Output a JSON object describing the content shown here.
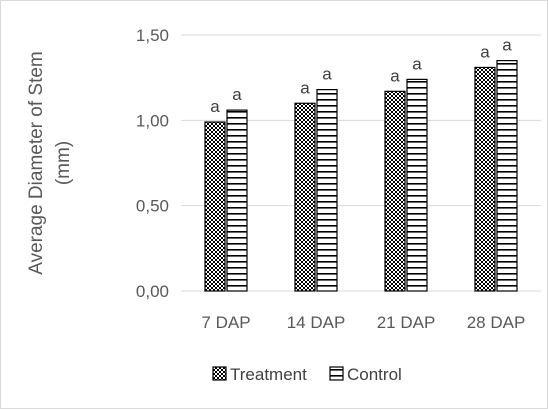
{
  "chart_data": {
    "type": "bar",
    "categories": [
      "7 DAP",
      "14 DAP",
      "21 DAP",
      "28 DAP"
    ],
    "series": [
      {
        "name": "Treatment",
        "values": [
          0.99,
          1.1,
          1.17,
          1.31
        ],
        "labels": [
          "a",
          "a",
          "a",
          "a"
        ],
        "pattern": "checker"
      },
      {
        "name": "Control",
        "values": [
          1.06,
          1.18,
          1.24,
          1.35
        ],
        "labels": [
          "a",
          "a",
          "a",
          "a"
        ],
        "pattern": "horizontal-lines"
      }
    ],
    "title": "",
    "xlabel": "",
    "ylabel": "Average Diameter of Stem",
    "ylabel_unit": "(mm)",
    "ylim": [
      0,
      1.5
    ],
    "yticks": [
      "0,00",
      "0,50",
      "1,00",
      "1,50"
    ],
    "ytick_values": [
      0,
      0.5,
      1.0,
      1.5
    ],
    "grid": true,
    "legend_position": "bottom",
    "colors": {
      "gridline": "#d9d9d9",
      "bar_stroke": "#000000",
      "text": "#595959"
    }
  }
}
